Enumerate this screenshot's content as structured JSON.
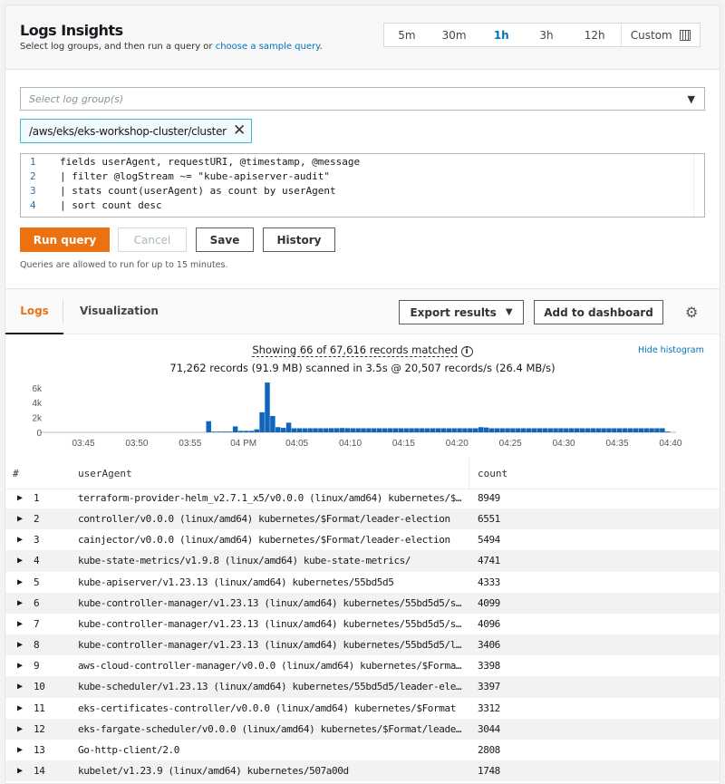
{
  "header": {
    "title": "Logs Insights",
    "subtitle": "Select log groups, and then run a query or ",
    "sample_link": "choose a sample query",
    "subtitle_end": "."
  },
  "time_range": {
    "options": [
      "5m",
      "30m",
      "1h",
      "3h",
      "12h"
    ],
    "selected": "1h",
    "custom_label": "Custom",
    "custom_icon": "calendar-icon"
  },
  "log_group_select": {
    "placeholder": "Select log group(s)",
    "caret_icon": "caret-down-icon"
  },
  "selected_log_group": "/aws/eks/eks-workshop-cluster/cluster",
  "query": {
    "lines": [
      "fields userAgent, requestURI, @timestamp, @message",
      "| filter @logStream ~= \"kube-apiserver-audit\"",
      "| stats count(userAgent) as count by userAgent",
      "| sort count desc"
    ]
  },
  "buttons": {
    "run": "Run query",
    "cancel": "Cancel",
    "save": "Save",
    "history": "History",
    "export": "Export results",
    "add_dashboard": "Add to dashboard"
  },
  "note": "Queries are allowed to run for up to 15 minutes.",
  "tabs": {
    "logs": "Logs",
    "visualization": "Visualization",
    "active": "Logs"
  },
  "summary": {
    "showing": "Showing 66 of 67,616 records matched",
    "scanned": "71,262 records (91.9 MB) scanned in 3.5s @ 20,507 records/s (26.4 MB/s)",
    "hide_histogram": "Hide histogram"
  },
  "colors": {
    "accent": "#ec7211",
    "bar": "#1166bb",
    "link": "#0073bb"
  },
  "chart_data": {
    "type": "bar",
    "x_ticks": [
      "03:45",
      "03:50",
      "03:55",
      "04 PM",
      "04:05",
      "04:10",
      "04:15",
      "04:20",
      "04:25",
      "04:30",
      "04:35",
      "04:40"
    ],
    "y_ticks": [
      "0",
      "2k",
      "4k",
      "6k"
    ],
    "ylim": [
      0,
      6500
    ],
    "bins": [
      [
        "03:56:30",
        1500
      ],
      [
        "03:57:00",
        100
      ],
      [
        "03:57:30",
        100
      ],
      [
        "03:58:00",
        100
      ],
      [
        "03:58:30",
        100
      ],
      [
        "03:59:00",
        800
      ],
      [
        "03:59:30",
        200
      ],
      [
        "04:00:00",
        200
      ],
      [
        "04:00:30",
        200
      ],
      [
        "04:01:00",
        400
      ],
      [
        "04:01:30",
        2700
      ],
      [
        "04:02:00",
        6700
      ],
      [
        "04:02:30",
        2200
      ],
      [
        "04:03:00",
        700
      ],
      [
        "04:03:30",
        600
      ],
      [
        "04:04:00",
        1300
      ],
      [
        "04:04:30",
        550
      ],
      [
        "04:05:00",
        550
      ],
      [
        "04:05:30",
        550
      ],
      [
        "04:06:00",
        550
      ],
      [
        "04:06:30",
        550
      ],
      [
        "04:07:00",
        550
      ],
      [
        "04:07:30",
        550
      ],
      [
        "04:08:00",
        560
      ],
      [
        "04:08:30",
        560
      ],
      [
        "04:09:00",
        580
      ],
      [
        "04:09:30",
        560
      ],
      [
        "04:10:00",
        550
      ],
      [
        "04:10:30",
        550
      ],
      [
        "04:11:00",
        550
      ],
      [
        "04:11:30",
        550
      ],
      [
        "04:12:00",
        550
      ],
      [
        "04:12:30",
        550
      ],
      [
        "04:13:00",
        550
      ],
      [
        "04:13:30",
        550
      ],
      [
        "04:14:00",
        550
      ],
      [
        "04:14:30",
        550
      ],
      [
        "04:15:00",
        550
      ],
      [
        "04:15:30",
        550
      ],
      [
        "04:16:00",
        550
      ],
      [
        "04:16:30",
        550
      ],
      [
        "04:17:00",
        550
      ],
      [
        "04:17:30",
        550
      ],
      [
        "04:18:00",
        550
      ],
      [
        "04:18:30",
        550
      ],
      [
        "04:19:00",
        550
      ],
      [
        "04:19:30",
        550
      ],
      [
        "04:20:00",
        550
      ],
      [
        "04:20:30",
        550
      ],
      [
        "04:21:00",
        550
      ],
      [
        "04:21:30",
        550
      ],
      [
        "04:22:00",
        700
      ],
      [
        "04:22:30",
        650
      ],
      [
        "04:23:00",
        550
      ],
      [
        "04:23:30",
        550
      ],
      [
        "04:24:00",
        550
      ],
      [
        "04:24:30",
        550
      ],
      [
        "04:25:00",
        550
      ],
      [
        "04:25:30",
        550
      ],
      [
        "04:26:00",
        550
      ],
      [
        "04:26:30",
        550
      ],
      [
        "04:27:00",
        550
      ],
      [
        "04:27:30",
        550
      ],
      [
        "04:28:00",
        550
      ],
      [
        "04:28:30",
        550
      ],
      [
        "04:29:00",
        550
      ],
      [
        "04:29:30",
        550
      ],
      [
        "04:30:00",
        550
      ],
      [
        "04:30:30",
        550
      ],
      [
        "04:31:00",
        550
      ],
      [
        "04:31:30",
        550
      ],
      [
        "04:32:00",
        550
      ],
      [
        "04:32:30",
        550
      ],
      [
        "04:33:00",
        550
      ],
      [
        "04:33:30",
        550
      ],
      [
        "04:34:00",
        550
      ],
      [
        "04:34:30",
        550
      ],
      [
        "04:35:00",
        550
      ],
      [
        "04:35:30",
        550
      ],
      [
        "04:36:00",
        550
      ],
      [
        "04:36:30",
        550
      ],
      [
        "04:37:00",
        550
      ],
      [
        "04:37:30",
        550
      ],
      [
        "04:38:00",
        550
      ],
      [
        "04:38:30",
        550
      ],
      [
        "04:39:00",
        550
      ],
      [
        "04:39:30",
        100
      ]
    ]
  },
  "table": {
    "columns": [
      "#",
      "userAgent",
      "count"
    ],
    "rows": [
      {
        "n": "1",
        "ua": "terraform-provider-helm_v2.7.1_x5/v0.0.0 (linux/amd64) kubernetes/$…",
        "count": "8949"
      },
      {
        "n": "2",
        "ua": "controller/v0.0.0 (linux/amd64) kubernetes/$Format/leader-election",
        "count": "6551"
      },
      {
        "n": "3",
        "ua": "cainjector/v0.0.0 (linux/amd64) kubernetes/$Format/leader-election",
        "count": "5494"
      },
      {
        "n": "4",
        "ua": "kube-state-metrics/v1.9.8 (linux/amd64) kube-state-metrics/",
        "count": "4741"
      },
      {
        "n": "5",
        "ua": "kube-apiserver/v1.23.13 (linux/amd64) kubernetes/55bd5d5",
        "count": "4333"
      },
      {
        "n": "6",
        "ua": "kube-controller-manager/v1.23.13 (linux/amd64) kubernetes/55bd5d5/s…",
        "count": "4099"
      },
      {
        "n": "7",
        "ua": "kube-controller-manager/v1.23.13 (linux/amd64) kubernetes/55bd5d5/s…",
        "count": "4096"
      },
      {
        "n": "8",
        "ua": "kube-controller-manager/v1.23.13 (linux/amd64) kubernetes/55bd5d5/l…",
        "count": "3406"
      },
      {
        "n": "9",
        "ua": "aws-cloud-controller-manager/v0.0.0 (linux/amd64) kubernetes/$Forma…",
        "count": "3398"
      },
      {
        "n": "10",
        "ua": "kube-scheduler/v1.23.13 (linux/amd64) kubernetes/55bd5d5/leader-ele…",
        "count": "3397"
      },
      {
        "n": "11",
        "ua": "eks-certificates-controller/v0.0.0 (linux/amd64) kubernetes/$Format",
        "count": "3312"
      },
      {
        "n": "12",
        "ua": "eks-fargate-scheduler/v0.0.0 (linux/amd64) kubernetes/$Format/leade…",
        "count": "3044"
      },
      {
        "n": "13",
        "ua": "Go-http-client/2.0",
        "count": "2808"
      },
      {
        "n": "14",
        "ua": "kubelet/v1.23.9 (linux/amd64) kubernetes/507a00d",
        "count": "1748"
      }
    ]
  }
}
